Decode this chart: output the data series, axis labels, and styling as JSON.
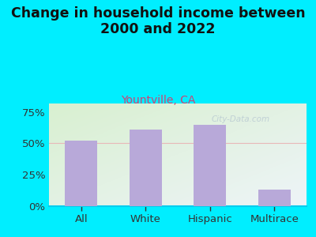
{
  "title": "Change in household income between\n2000 and 2022",
  "subtitle": "Yountville, CA",
  "categories": [
    "All",
    "White",
    "Hispanic",
    "Multirace"
  ],
  "values": [
    52,
    61,
    65,
    13
  ],
  "bar_color": "#b8a9d9",
  "title_fontsize": 12.5,
  "title_fontweight": "bold",
  "subtitle_fontsize": 10,
  "subtitle_color": "#cc4477",
  "tick_label_fontsize": 9.5,
  "yticks": [
    0,
    25,
    50,
    75
  ],
  "ytick_labels": [
    "0%",
    "25%",
    "50%",
    "75%"
  ],
  "ylim": [
    0,
    82
  ],
  "background_outer": "#00eeff",
  "background_plot_tl": "#d8f0d0",
  "background_plot_br": "#e8f0f8",
  "watermark": "City-Data.com",
  "grid_color": "#e8b8b8",
  "title_color": "#111111",
  "spine_color": "#00ccee",
  "divider_color": "#aadddd"
}
